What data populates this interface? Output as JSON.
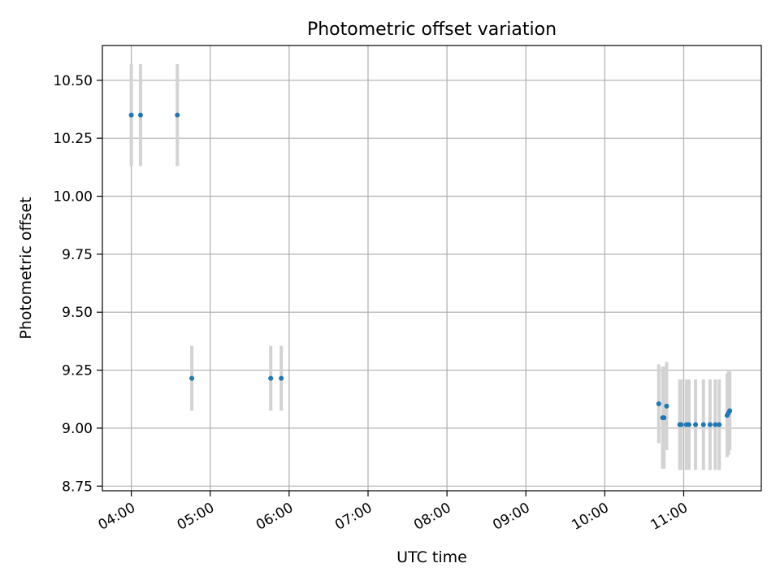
{
  "chart_data": {
    "type": "scatter",
    "title": "Photometric offset variation",
    "xlabel": "UTC time",
    "ylabel": "Photometric offset",
    "xlim": [
      "03:38",
      "11:59"
    ],
    "ylim": [
      8.73,
      10.65
    ],
    "grid": true,
    "x_ticks": [
      "04:00",
      "05:00",
      "06:00",
      "07:00",
      "08:00",
      "09:00",
      "10:00",
      "11:00"
    ],
    "y_ticks": [
      "8.75",
      "9.00",
      "9.25",
      "9.50",
      "9.75",
      "10.00",
      "10.25",
      "10.50"
    ],
    "errorbar_color": "#d3d3d3",
    "marker_color": "#1f77b4",
    "series": [
      {
        "points": [
          {
            "x": "04:00",
            "y": 10.35,
            "err": 0.22
          },
          {
            "x": "04:07",
            "y": 10.35,
            "err": 0.22
          },
          {
            "x": "04:35",
            "y": 10.35,
            "err": 0.22
          },
          {
            "x": "04:46",
            "y": 9.215,
            "err": 0.14
          },
          {
            "x": "05:46",
            "y": 9.215,
            "err": 0.14
          },
          {
            "x": "05:54",
            "y": 9.215,
            "err": 0.14
          },
          {
            "x": "10:41",
            "y": 9.105,
            "err": 0.17
          },
          {
            "x": "10:44",
            "y": 9.045,
            "err": 0.22
          },
          {
            "x": "10:45",
            "y": 9.045,
            "err": 0.22
          },
          {
            "x": "10:47",
            "y": 9.095,
            "err": 0.19
          },
          {
            "x": "10:57",
            "y": 9.015,
            "err": 0.195
          },
          {
            "x": "10:58",
            "y": 9.015,
            "err": 0.195
          },
          {
            "x": "11:02",
            "y": 9.015,
            "err": 0.195
          },
          {
            "x": "11:04",
            "y": 9.015,
            "err": 0.195
          },
          {
            "x": "11:09",
            "y": 9.015,
            "err": 0.195
          },
          {
            "x": "11:15",
            "y": 9.015,
            "err": 0.195
          },
          {
            "x": "11:20",
            "y": 9.015,
            "err": 0.195
          },
          {
            "x": "11:24",
            "y": 9.015,
            "err": 0.195
          },
          {
            "x": "11:27",
            "y": 9.015,
            "err": 0.195
          },
          {
            "x": "11:33",
            "y": 9.055,
            "err": 0.18
          },
          {
            "x": "11:34",
            "y": 9.065,
            "err": 0.18
          },
          {
            "x": "11:35",
            "y": 9.075,
            "err": 0.17
          }
        ]
      }
    ]
  }
}
